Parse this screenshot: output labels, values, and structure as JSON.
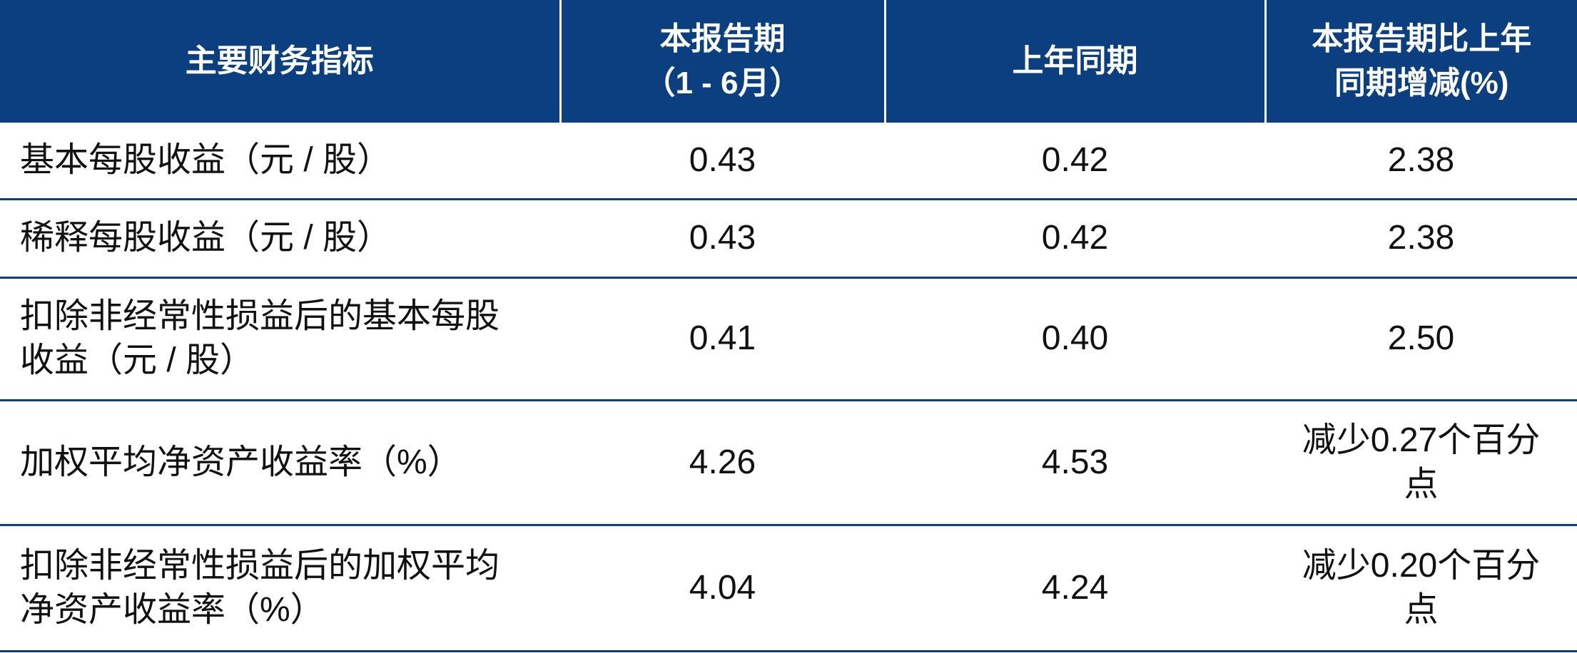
{
  "table": {
    "header": [
      [
        "主要财务指标"
      ],
      [
        "本报告期",
        "（1 - 6月）"
      ],
      [
        "上年同期"
      ],
      [
        "本报告期比上年",
        "同期增减(%)"
      ]
    ],
    "rows": [
      [
        [
          "基本每股收益（元 / 股）"
        ],
        [
          "0.43"
        ],
        [
          "0.42"
        ],
        [
          "2.38"
        ]
      ],
      [
        [
          "稀释每股收益（元 / 股）"
        ],
        [
          "0.43"
        ],
        [
          "0.42"
        ],
        [
          "2.38"
        ]
      ],
      [
        [
          "扣除非经常性损益后的基本每股",
          "收益（元 / 股）"
        ],
        [
          "0.41"
        ],
        [
          "0.40"
        ],
        [
          "2.50"
        ]
      ],
      [
        [
          "加权平均净资产收益率（%）"
        ],
        [
          "4.26"
        ],
        [
          "4.53"
        ],
        [
          "减少0.27个百分",
          "点"
        ]
      ],
      [
        [
          "扣除非经常性损益后的加权平均",
          "净资产收益率（%）"
        ],
        [
          "4.04"
        ],
        [
          "4.24"
        ],
        [
          "减少0.20个百分",
          "点"
        ]
      ]
    ]
  }
}
